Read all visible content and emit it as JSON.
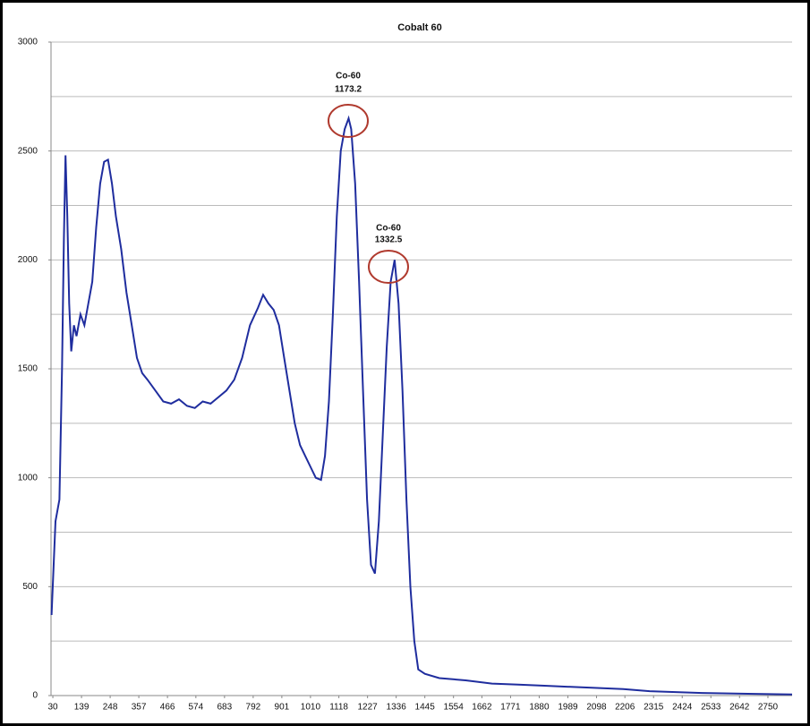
{
  "chart_data": {
    "type": "line",
    "title": "Cobalt 60",
    "series": [
      {
        "name": "Cobalt 60",
        "color": "#1f2d9e",
        "x": [
          25,
          40,
          55,
          65,
          72,
          78,
          85,
          92,
          100,
          110,
          120,
          135,
          150,
          165,
          180,
          195,
          210,
          225,
          240,
          255,
          270,
          290,
          310,
          330,
          350,
          370,
          390,
          420,
          450,
          480,
          510,
          540,
          570,
          600,
          630,
          660,
          690,
          720,
          750,
          780,
          810,
          830,
          850,
          870,
          890,
          910,
          930,
          950,
          970,
          990,
          1010,
          1030,
          1050,
          1065,
          1080,
          1095,
          1110,
          1125,
          1140,
          1155,
          1165,
          1180,
          1195,
          1210,
          1225,
          1240,
          1255,
          1270,
          1285,
          1300,
          1315,
          1330,
          1345,
          1360,
          1375,
          1390,
          1405,
          1420,
          1445,
          1500,
          1600,
          1700,
          1800,
          1900,
          2000,
          2100,
          2200,
          2300,
          2424,
          2500,
          2600,
          2700,
          2842
        ],
        "values": [
          370,
          800,
          900,
          1500,
          2100,
          2480,
          2200,
          1800,
          1580,
          1700,
          1650,
          1750,
          1700,
          1800,
          1900,
          2150,
          2350,
          2450,
          2460,
          2350,
          2200,
          2050,
          1850,
          1700,
          1550,
          1480,
          1450,
          1400,
          1350,
          1340,
          1360,
          1330,
          1320,
          1350,
          1340,
          1370,
          1400,
          1450,
          1550,
          1700,
          1780,
          1840,
          1800,
          1770,
          1700,
          1550,
          1400,
          1250,
          1150,
          1100,
          1050,
          1000,
          990,
          1100,
          1350,
          1750,
          2200,
          2500,
          2600,
          2650,
          2600,
          2350,
          1900,
          1400,
          900,
          600,
          560,
          800,
          1200,
          1600,
          1900,
          2000,
          1800,
          1400,
          900,
          500,
          250,
          120,
          100,
          80,
          70,
          55,
          50,
          45,
          40,
          35,
          30,
          20,
          15,
          12,
          10,
          8,
          5
        ]
      }
    ],
    "xlim": [
      23,
      2842
    ],
    "xticks": [
      30,
      139,
      248,
      357,
      466,
      574,
      683,
      792,
      901,
      1010,
      1118,
      1227,
      1336,
      1445,
      1554,
      1662,
      1771,
      1880,
      1989,
      2098,
      2206,
      2315,
      2424,
      2533,
      2642,
      2750
    ],
    "ylim": [
      0,
      3000
    ],
    "yticks": [
      0,
      500,
      1000,
      1500,
      2000,
      2500,
      3000
    ],
    "ygrid": [
      250,
      500,
      750,
      1000,
      1250,
      1500,
      1750,
      2000,
      2250,
      2500,
      2750,
      3000
    ],
    "annotations": [
      {
        "label": "Co-60",
        "energy": "1173.2"
      },
      {
        "label": "Co-60",
        "energy": "1332.5"
      }
    ]
  }
}
